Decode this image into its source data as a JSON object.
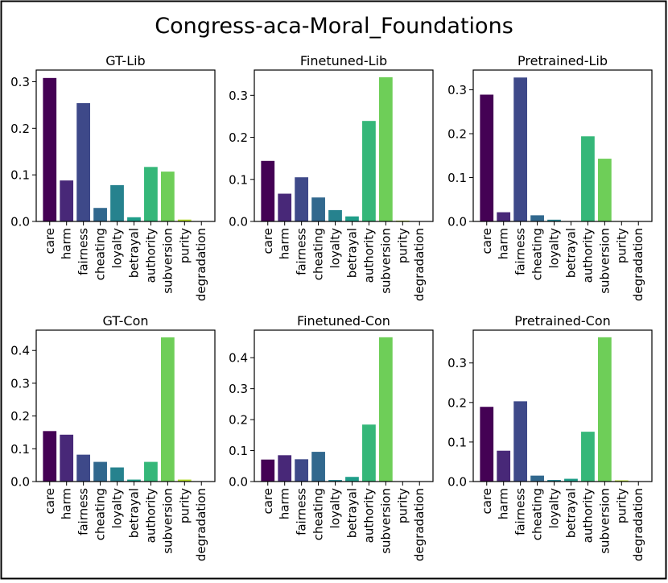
{
  "figure_title": "Congress-aca-Moral_Foundations",
  "colors": [
    "#440154",
    "#482878",
    "#3e4989",
    "#31688e",
    "#26828e",
    "#1f9e89",
    "#35b779",
    "#6ece58",
    "#b5de2b",
    "#fde725"
  ],
  "chart_data": [
    {
      "type": "bar",
      "title": "GT-Lib",
      "categories": [
        "care",
        "harm",
        "fairness",
        "cheating",
        "loyalty",
        "betrayal",
        "authority",
        "subversion",
        "purity",
        "degradation"
      ],
      "values": [
        0.308,
        0.088,
        0.254,
        0.029,
        0.078,
        0.009,
        0.117,
        0.107,
        0.004,
        0.0
      ],
      "ylim": [
        0,
        0.325
      ],
      "yticks": [
        0.0,
        0.1,
        0.2,
        0.3
      ],
      "ytick_labels": [
        "0.0",
        "0.1",
        "0.2",
        "0.3"
      ],
      "xlabel": "",
      "ylabel": ""
    },
    {
      "type": "bar",
      "title": "Finetuned-Lib",
      "categories": [
        "care",
        "harm",
        "fairness",
        "cheating",
        "loyalty",
        "betrayal",
        "authority",
        "subversion",
        "purity",
        "degradation"
      ],
      "values": [
        0.144,
        0.066,
        0.105,
        0.057,
        0.027,
        0.012,
        0.239,
        0.343,
        0.002,
        0.0
      ],
      "ylim": [
        0,
        0.36
      ],
      "yticks": [
        0.0,
        0.1,
        0.2,
        0.3
      ],
      "ytick_labels": [
        "0.0",
        "0.1",
        "0.2",
        "0.3"
      ],
      "xlabel": "",
      "ylabel": ""
    },
    {
      "type": "bar",
      "title": "Pretrained-Lib",
      "categories": [
        "care",
        "harm",
        "fairness",
        "cheating",
        "loyalty",
        "betrayal",
        "authority",
        "subversion",
        "purity",
        "degradation"
      ],
      "values": [
        0.289,
        0.021,
        0.328,
        0.014,
        0.004,
        0.001,
        0.194,
        0.143,
        0.001,
        0.0
      ],
      "ylim": [
        0,
        0.345
      ],
      "yticks": [
        0.0,
        0.1,
        0.2,
        0.3
      ],
      "ytick_labels": [
        "0.0",
        "0.1",
        "0.2",
        "0.3"
      ],
      "xlabel": "",
      "ylabel": ""
    },
    {
      "type": "bar",
      "title": "GT-Con",
      "categories": [
        "care",
        "harm",
        "fairness",
        "cheating",
        "loyalty",
        "betrayal",
        "authority",
        "subversion",
        "purity",
        "degradation"
      ],
      "values": [
        0.154,
        0.143,
        0.082,
        0.06,
        0.043,
        0.006,
        0.06,
        0.44,
        0.006,
        0.0
      ],
      "ylim": [
        0,
        0.462
      ],
      "yticks": [
        0.0,
        0.1,
        0.2,
        0.3,
        0.4
      ],
      "ytick_labels": [
        "0.0",
        "0.1",
        "0.2",
        "0.3",
        "0.4"
      ],
      "xlabel": "",
      "ylabel": ""
    },
    {
      "type": "bar",
      "title": "Finetuned-Con",
      "categories": [
        "care",
        "harm",
        "fairness",
        "cheating",
        "loyalty",
        "betrayal",
        "authority",
        "subversion",
        "purity",
        "degradation"
      ],
      "values": [
        0.071,
        0.085,
        0.072,
        0.096,
        0.005,
        0.015,
        0.184,
        0.466,
        0.001,
        0.0
      ],
      "ylim": [
        0,
        0.489
      ],
      "yticks": [
        0.0,
        0.1,
        0.2,
        0.3,
        0.4
      ],
      "ytick_labels": [
        "0.0",
        "0.1",
        "0.2",
        "0.3",
        "0.4"
      ],
      "xlabel": "",
      "ylabel": ""
    },
    {
      "type": "bar",
      "title": "Pretrained-Con",
      "categories": [
        "care",
        "harm",
        "fairness",
        "cheating",
        "loyalty",
        "betrayal",
        "authority",
        "subversion",
        "purity",
        "degradation"
      ],
      "values": [
        0.189,
        0.078,
        0.203,
        0.015,
        0.004,
        0.007,
        0.126,
        0.365,
        0.003,
        0.0
      ],
      "ylim": [
        0,
        0.383
      ],
      "yticks": [
        0.0,
        0.1,
        0.2,
        0.3
      ],
      "ytick_labels": [
        "0.0",
        "0.1",
        "0.2",
        "0.3"
      ],
      "xlabel": "",
      "ylabel": ""
    }
  ]
}
